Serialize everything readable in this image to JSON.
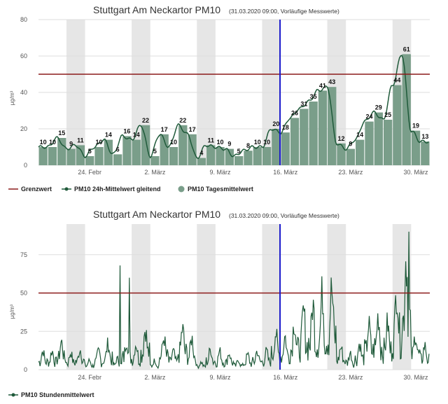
{
  "chart_data": [
    {
      "type": "bar",
      "title": "Stuttgart Am Neckartor PM10",
      "subtitle": "(31.03.2020 09:00, Vorläufige Messwerte)",
      "ylabel": "µg/m³",
      "ylim": [
        0,
        80
      ],
      "yticks": [
        "0",
        "20",
        "40",
        "60",
        "80"
      ],
      "xticks": [
        "24. Febr",
        "2. März",
        "9. März",
        "16. März",
        "23. März",
        "30. März"
      ],
      "categories": [
        "19.02",
        "20.02",
        "21.02",
        "22.02",
        "23.02",
        "24.02",
        "25.02",
        "26.02",
        "27.02",
        "28.02",
        "29.02",
        "01.03",
        "02.03",
        "03.03",
        "04.03",
        "05.03",
        "06.03",
        "07.03",
        "08.03",
        "09.03",
        "10.03",
        "11.03",
        "12.03",
        "13.03",
        "14.03",
        "15.03",
        "16.03",
        "17.03",
        "18.03",
        "19.03",
        "20.03",
        "21.03",
        "22.03",
        "23.03",
        "24.03",
        "25.03",
        "26.03",
        "27.03",
        "28.03",
        "29.03",
        "30.03",
        "31.03"
      ],
      "series": [
        {
          "name": "PM10 Tagesmittelwert",
          "values": [
            10,
            10,
            15,
            9,
            11,
            5,
            10,
            14,
            6,
            16,
            14,
            22,
            5,
            17,
            10,
            22,
            17,
            4,
            11,
            10,
            9,
            5,
            8,
            10,
            10,
            20,
            18,
            26,
            31,
            35,
            41,
            43,
            12,
            9,
            14,
            24,
            29,
            25,
            44,
            61,
            19,
            13
          ]
        },
        {
          "name": "PM10 24h-Mittelwert gleitend"
        },
        {
          "name": "Grenzwert",
          "value": 50
        }
      ],
      "weekend_bands": [
        "22.02-23.02",
        "29.02-01.03",
        "07.03-08.03",
        "14.03-15.03",
        "21.03-22.03",
        "28.03-29.03"
      ],
      "current_marker": "16.03",
      "grid": true,
      "legend": "bottom-left"
    },
    {
      "type": "line",
      "title": "Stuttgart Am Neckartor PM10",
      "subtitle": "(31.03.2020 09:00, Vorläufige Messwerte)",
      "ylabel": "µg/m³",
      "ylim": [
        0,
        95
      ],
      "yticks": [
        "0",
        "25",
        "50",
        "75"
      ],
      "xticks": [
        "24. Febr",
        "2. März",
        "9. März",
        "16. März",
        "23. März",
        "30. März"
      ],
      "series": [
        {
          "name": "PM10 Stundenmittelwert"
        },
        {
          "name": "Grenzwert",
          "value": 50
        }
      ],
      "peaks": [
        {
          "x": "29.03",
          "y": 90
        },
        {
          "x": "27.02",
          "y": 68
        },
        {
          "x": "28.02",
          "y": 60
        }
      ],
      "current_marker": "16.03",
      "grid": true,
      "legend": "bottom-left"
    }
  ],
  "colors": {
    "bar": "#7a9e8a",
    "line": "#1f5a3a",
    "limit": "#8b1a1a",
    "marker": "#1a1acc",
    "band": "#e6e6e6",
    "grid": "#dddddd"
  }
}
